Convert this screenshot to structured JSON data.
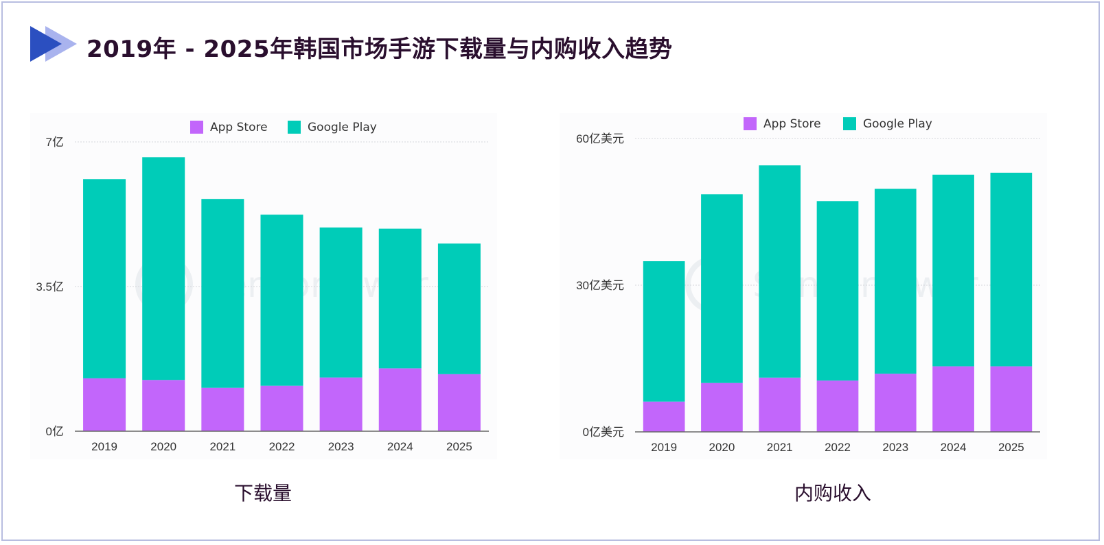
{
  "title": "2019年 - 2025年韩国市场手游下载量与内购收入趋势",
  "watermark": "SensorTower",
  "colors": {
    "app_store": "#c266fb",
    "google_play": "#00ccb8",
    "title": "#2a0f2e",
    "icon_dark": "#2b4fc0",
    "icon_light": "#a9b3ee"
  },
  "chart_data": [
    {
      "type": "bar",
      "stacked": true,
      "caption": "下载量",
      "categories": [
        "2019",
        "2020",
        "2021",
        "2022",
        "2023",
        "2024",
        "2025"
      ],
      "series": [
        {
          "name": "App Store",
          "values": [
            1.28,
            1.24,
            1.05,
            1.1,
            1.3,
            1.52,
            1.38
          ]
        },
        {
          "name": "Google Play",
          "values": [
            4.82,
            5.39,
            4.57,
            4.14,
            3.63,
            3.38,
            3.16
          ]
        }
      ],
      "ylim": [
        0,
        7
      ],
      "yticks": [
        {
          "value": 0,
          "label": "0亿"
        },
        {
          "value": 3.5,
          "label": "3.5亿"
        },
        {
          "value": 7,
          "label": "7亿"
        }
      ],
      "legend": "top-center",
      "grid": true
    },
    {
      "type": "bar",
      "stacked": true,
      "caption": "内购收入",
      "categories": [
        "2019",
        "2020",
        "2021",
        "2022",
        "2023",
        "2024",
        "2025"
      ],
      "series": [
        {
          "name": "App Store",
          "values": [
            6.2,
            10.0,
            11.1,
            10.5,
            11.9,
            13.4,
            13.4
          ]
        },
        {
          "name": "Google Play",
          "values": [
            28.7,
            38.6,
            43.4,
            36.7,
            37.8,
            39.2,
            39.6
          ]
        }
      ],
      "ylim": [
        0,
        60
      ],
      "yticks": [
        {
          "value": 0,
          "label": "0亿美元"
        },
        {
          "value": 30,
          "label": "30亿美元"
        },
        {
          "value": 60,
          "label": "60亿美元"
        }
      ],
      "legend": "top-center",
      "grid": true
    }
  ]
}
